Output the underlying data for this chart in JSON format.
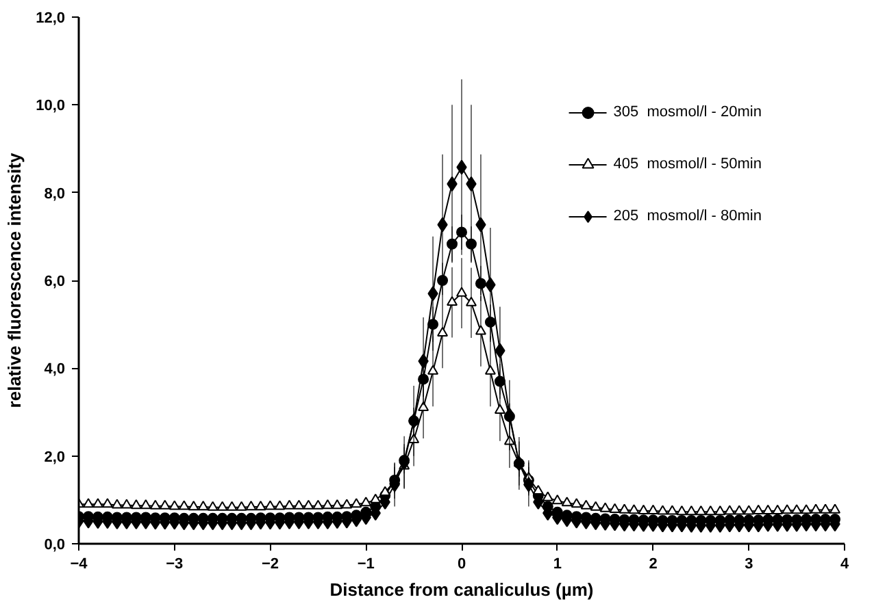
{
  "chart_data": {
    "type": "line",
    "xlabel": "Distance from canaliculus (µm)",
    "ylabel": "relative fluorescence intensity",
    "x": [
      -4.0,
      -3.9,
      -3.8,
      -3.7,
      -3.6,
      -3.5,
      -3.4,
      -3.3,
      -3.2,
      -3.1,
      -3.0,
      -2.9,
      -2.8,
      -2.7,
      -2.6,
      -2.5,
      -2.4,
      -2.3,
      -2.2,
      -2.1,
      -2.0,
      -1.9,
      -1.8,
      -1.7,
      -1.6,
      -1.5,
      -1.4,
      -1.3,
      -1.2,
      -1.1,
      -1.0,
      -0.9,
      -0.8,
      -0.7,
      -0.6,
      -0.5,
      -0.4,
      -0.3,
      -0.2,
      -0.1,
      0.0,
      0.1,
      0.2,
      0.3,
      0.4,
      0.5,
      0.6,
      0.7,
      0.8,
      0.9,
      1.0,
      1.1,
      1.2,
      1.3,
      1.4,
      1.5,
      1.6,
      1.7,
      1.8,
      1.9,
      2.0,
      2.1,
      2.2,
      2.3,
      2.4,
      2.5,
      2.6,
      2.7,
      2.8,
      2.9,
      3.0,
      3.1,
      3.2,
      3.3,
      3.4,
      3.5,
      3.6,
      3.7,
      3.8,
      3.9
    ],
    "series": [
      {
        "name": "305  mosmol/l - 20min",
        "color": "#000000",
        "marker": "circle",
        "values": [
          0.62,
          0.62,
          0.61,
          0.61,
          0.6,
          0.6,
          0.6,
          0.6,
          0.59,
          0.59,
          0.59,
          0.58,
          0.58,
          0.58,
          0.58,
          0.58,
          0.58,
          0.58,
          0.58,
          0.59,
          0.59,
          0.59,
          0.6,
          0.6,
          0.6,
          0.6,
          0.61,
          0.61,
          0.62,
          0.65,
          0.72,
          0.85,
          1.1,
          1.45,
          1.9,
          2.8,
          3.75,
          5.0,
          6.0,
          6.83,
          7.1,
          6.83,
          5.93,
          5.05,
          3.7,
          2.9,
          1.83,
          1.45,
          1.1,
          0.85,
          0.72,
          0.65,
          0.62,
          0.6,
          0.58,
          0.57,
          0.56,
          0.55,
          0.55,
          0.54,
          0.54,
          0.53,
          0.53,
          0.53,
          0.53,
          0.53,
          0.53,
          0.53,
          0.54,
          0.54,
          0.54,
          0.54,
          0.55,
          0.55,
          0.55,
          0.55,
          0.56,
          0.56,
          0.56,
          0.56
        ],
        "errors": [
          null,
          null,
          null,
          null,
          null,
          null,
          null,
          null,
          null,
          null,
          null,
          null,
          null,
          null,
          null,
          null,
          null,
          null,
          null,
          null,
          null,
          null,
          null,
          null,
          null,
          null,
          null,
          null,
          null,
          null,
          null,
          null,
          null,
          0.3,
          0.3,
          0.3,
          0.4,
          0.4,
          0.4,
          0.4,
          0.4,
          0.4,
          0.4,
          0.4,
          0.4,
          0.3,
          0.3,
          0.3,
          null,
          null,
          null,
          null,
          null,
          null,
          null,
          null,
          null,
          null,
          null,
          null,
          null,
          null,
          null,
          null,
          null,
          null,
          null,
          null,
          null,
          null,
          null,
          null,
          null,
          null,
          null,
          null,
          null,
          null,
          null,
          null
        ]
      },
      {
        "name": "405  mosmol/l - 50min",
        "color": "#000000",
        "marker": "triangle",
        "values": [
          0.9,
          0.9,
          0.9,
          0.9,
          0.88,
          0.88,
          0.87,
          0.87,
          0.86,
          0.86,
          0.85,
          0.85,
          0.84,
          0.84,
          0.83,
          0.83,
          0.83,
          0.83,
          0.84,
          0.84,
          0.85,
          0.85,
          0.86,
          0.86,
          0.86,
          0.86,
          0.87,
          0.87,
          0.88,
          0.9,
          0.93,
          1.0,
          1.17,
          1.43,
          1.77,
          2.37,
          3.1,
          3.93,
          4.8,
          5.5,
          5.71,
          5.49,
          4.84,
          3.93,
          3.04,
          2.33,
          1.83,
          1.5,
          1.2,
          1.05,
          0.98,
          0.93,
          0.9,
          0.86,
          0.83,
          0.8,
          0.78,
          0.77,
          0.76,
          0.75,
          0.75,
          0.74,
          0.74,
          0.73,
          0.73,
          0.73,
          0.73,
          0.73,
          0.74,
          0.74,
          0.74,
          0.75,
          0.75,
          0.75,
          0.76,
          0.76,
          0.76,
          0.77,
          0.77,
          0.77
        ],
        "errors": [
          null,
          null,
          null,
          null,
          null,
          null,
          null,
          null,
          null,
          null,
          null,
          null,
          null,
          null,
          null,
          null,
          null,
          null,
          null,
          null,
          null,
          null,
          null,
          null,
          null,
          null,
          null,
          null,
          null,
          null,
          null,
          null,
          null,
          0.4,
          0.5,
          0.6,
          0.7,
          0.8,
          0.8,
          0.8,
          0.8,
          0.8,
          0.8,
          0.8,
          0.7,
          0.6,
          0.5,
          0.4,
          null,
          null,
          null,
          null,
          null,
          null,
          null,
          null,
          null,
          null,
          null,
          null,
          null,
          null,
          null,
          null,
          null,
          null,
          null,
          null,
          null,
          null,
          null,
          null,
          null,
          null,
          null,
          null,
          null,
          null,
          null,
          null
        ]
      },
      {
        "name": "205  mosmol/l - 80min",
        "color": "#000000",
        "marker": "diamond",
        "values": [
          0.52,
          0.52,
          0.51,
          0.51,
          0.5,
          0.5,
          0.5,
          0.5,
          0.49,
          0.49,
          0.49,
          0.48,
          0.48,
          0.48,
          0.48,
          0.48,
          0.48,
          0.48,
          0.48,
          0.49,
          0.49,
          0.49,
          0.5,
          0.5,
          0.5,
          0.5,
          0.5,
          0.51,
          0.52,
          0.55,
          0.6,
          0.7,
          0.95,
          1.35,
          1.85,
          2.8,
          4.16,
          5.7,
          7.27,
          8.2,
          8.58,
          8.2,
          7.27,
          5.9,
          4.4,
          2.93,
          1.83,
          1.35,
          0.95,
          0.7,
          0.6,
          0.55,
          0.52,
          0.5,
          0.48,
          0.47,
          0.46,
          0.45,
          0.45,
          0.44,
          0.44,
          0.43,
          0.43,
          0.43,
          0.42,
          0.42,
          0.42,
          0.42,
          0.43,
          0.43,
          0.43,
          0.43,
          0.44,
          0.44,
          0.44,
          0.44,
          0.45,
          0.45,
          0.45,
          0.45
        ],
        "errors": [
          null,
          null,
          null,
          null,
          null,
          null,
          null,
          null,
          null,
          null,
          null,
          null,
          null,
          null,
          null,
          null,
          null,
          null,
          null,
          null,
          null,
          null,
          null,
          null,
          null,
          null,
          null,
          null,
          null,
          null,
          null,
          null,
          null,
          0.5,
          0.6,
          0.8,
          1.0,
          1.3,
          1.6,
          1.8,
          2.0,
          1.8,
          1.6,
          1.3,
          1.0,
          0.8,
          0.6,
          0.5,
          null,
          null,
          null,
          null,
          null,
          null,
          null,
          null,
          null,
          null,
          null,
          null,
          null,
          null,
          null,
          null,
          null,
          null,
          null,
          null,
          null,
          null,
          null,
          null,
          null,
          null,
          null,
          null,
          null,
          null,
          null,
          null
        ]
      }
    ],
    "xlim": [
      -4,
      4
    ],
    "xticks": [
      -4,
      -3,
      -2,
      -1,
      0,
      1,
      2,
      3,
      4
    ],
    "ylim": [
      0,
      12
    ],
    "yticks": [
      {
        "value": 0,
        "label": "0,0"
      },
      {
        "value": 2,
        "label": "2,0"
      },
      {
        "value": 4,
        "label": "4,0"
      },
      {
        "value": 6,
        "label": "6,0"
      },
      {
        "value": 8,
        "label": "8,0"
      },
      {
        "value": 10,
        "label": "10,0"
      },
      {
        "value": 12,
        "label": "12,0"
      }
    ],
    "grid": false,
    "legend": "top right"
  }
}
